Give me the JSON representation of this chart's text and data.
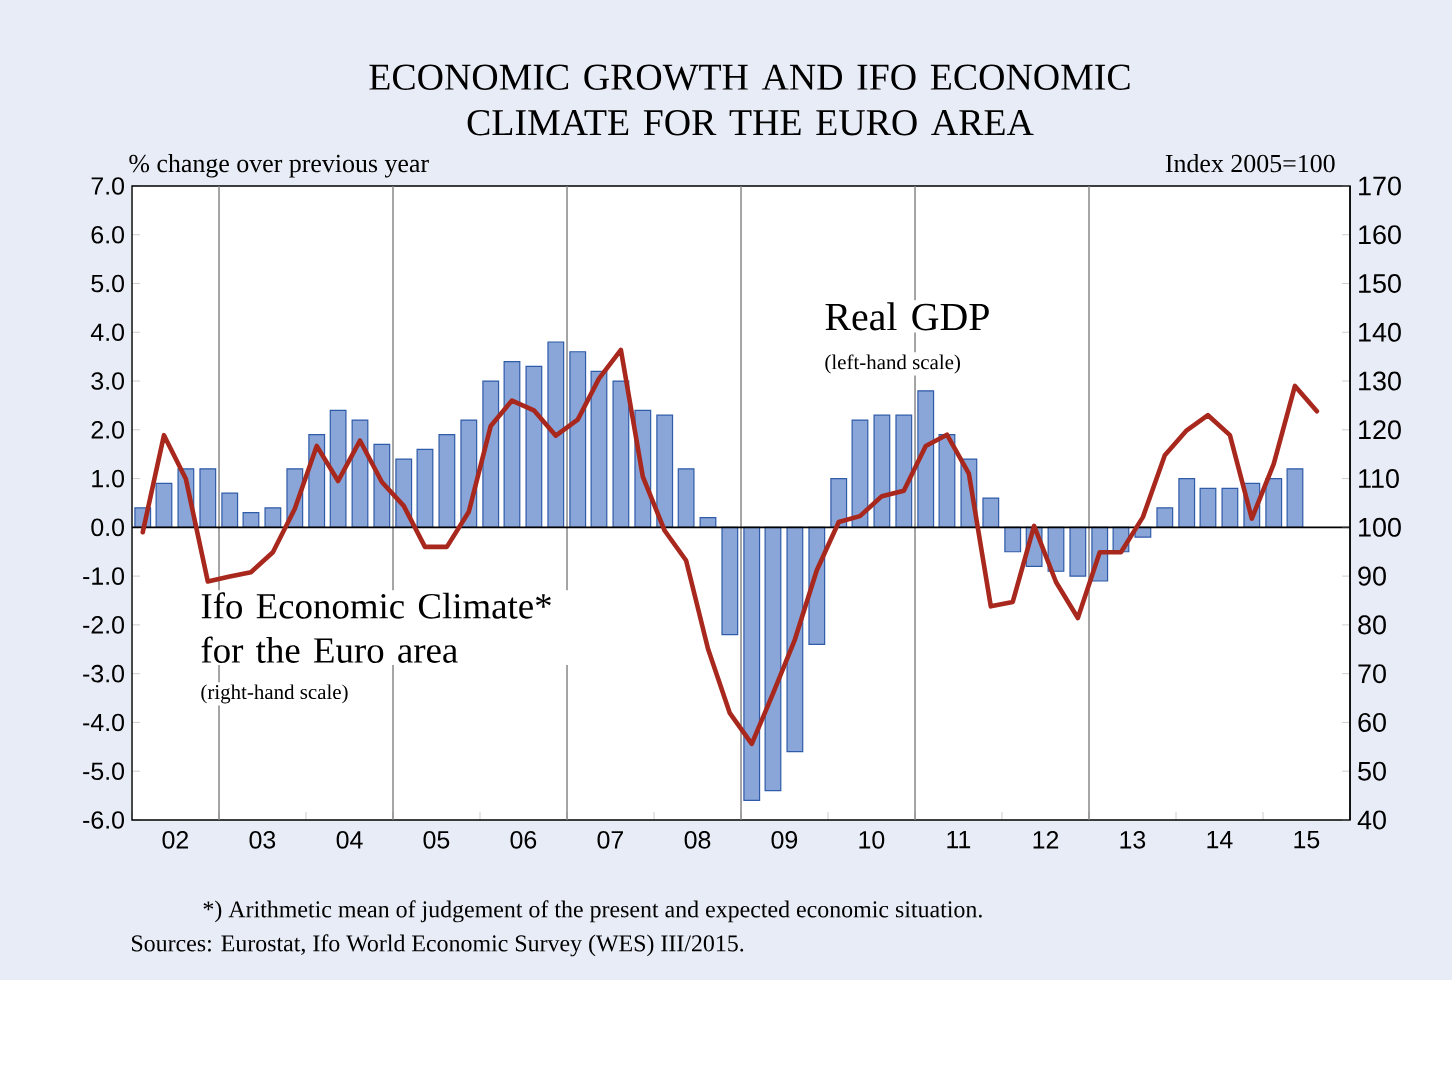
{
  "chart_data": {
    "type": "bar",
    "title": "ECONOMIC GROWTH AND IFO ECONOMIC CLIMATE FOR THE EURO AREA",
    "ylabel": "% change over previous year",
    "y2label": "Index 2005=100",
    "xlim": [
      "2002-01-01",
      "2016-01-01"
    ],
    "xticks": [
      {
        "value": "2002-01-01",
        "label": null
      },
      {
        "value": "2003-01-01",
        "label": null
      },
      {
        "value": "2004-01-01",
        "label": null
      },
      {
        "value": "2005-01-01",
        "label": null
      },
      {
        "value": "2006-01-01",
        "label": null
      },
      {
        "value": "2007-01-01",
        "label": null
      },
      {
        "value": "2008-01-01",
        "label": null
      },
      {
        "value": "2009-01-01",
        "label": null
      },
      {
        "value": "2010-01-01",
        "label": null
      },
      {
        "value": "2011-01-01",
        "label": null
      },
      {
        "value": "2012-01-01",
        "label": null
      },
      {
        "value": "2013-01-01",
        "label": null
      },
      {
        "value": "2014-01-01",
        "label": null
      },
      {
        "value": "2015-01-01",
        "label": null
      },
      {
        "value": "2016-01-01",
        "label": null
      },
      {
        "value": "2002-07-02",
        "label": "02"
      },
      {
        "value": "2003-07-02",
        "label": "03"
      },
      {
        "value": "2004-07-02",
        "label": "04"
      },
      {
        "value": "2005-07-02",
        "label": "05"
      },
      {
        "value": "2006-07-02",
        "label": "06"
      },
      {
        "value": "2007-07-02",
        "label": "07"
      },
      {
        "value": "2008-07-02",
        "label": "08"
      },
      {
        "value": "2009-07-02",
        "label": "09"
      },
      {
        "value": "2010-07-02",
        "label": "10"
      },
      {
        "value": "2011-07-02",
        "label": "11"
      },
      {
        "value": "2012-07-02",
        "label": "12"
      },
      {
        "value": "2013-07-02",
        "label": "13"
      },
      {
        "value": "2014-07-02",
        "label": "14"
      },
      {
        "value": "2015-07-02",
        "label": "15"
      }
    ],
    "ylim": [
      -6,
      7
    ],
    "yticks": [
      {
        "value": -6,
        "label": "-6.0"
      },
      {
        "value": -5,
        "label": "-5.0"
      },
      {
        "value": -4,
        "label": "-4.0"
      },
      {
        "value": -3,
        "label": "-3.0"
      },
      {
        "value": -2,
        "label": "-2.0"
      },
      {
        "value": -1,
        "label": "-1.0"
      },
      {
        "value": 0,
        "label": "0.0"
      },
      {
        "value": 1,
        "label": "1.0"
      },
      {
        "value": 2,
        "label": "2.0"
      },
      {
        "value": 3,
        "label": "3.0"
      },
      {
        "value": 4,
        "label": "4.0"
      },
      {
        "value": 5,
        "label": "5.0"
      },
      {
        "value": 6,
        "label": "6.0"
      },
      {
        "value": 7,
        "label": "7.0"
      }
    ],
    "y2lim": [
      40,
      170
    ],
    "y2ticks": [
      40,
      50,
      60,
      70,
      80,
      90,
      100,
      110,
      120,
      130,
      140,
      150,
      160,
      170
    ],
    "series": [
      {
        "name": "Real GDP",
        "color": "#8aa5d8",
        "x": [
          "2002-02-15",
          "2002-05-15",
          "2002-08-15",
          "2002-11-15",
          "2003-02-15",
          "2003-05-15",
          "2003-08-15",
          "2003-11-15",
          "2004-02-15",
          "2004-05-15",
          "2004-08-15",
          "2004-11-15",
          "2005-02-15",
          "2005-05-15",
          "2005-08-15",
          "2005-11-15",
          "2006-02-15",
          "2006-05-15",
          "2006-08-15",
          "2006-11-15",
          "2007-02-15",
          "2007-05-15",
          "2007-08-15",
          "2007-11-15",
          "2008-02-15",
          "2008-05-15",
          "2008-08-15",
          "2008-11-15",
          "2009-02-15",
          "2009-05-15",
          "2009-08-15",
          "2009-11-15",
          "2010-02-15",
          "2010-05-15",
          "2010-08-15",
          "2010-11-15",
          "2011-02-15",
          "2011-05-15",
          "2011-08-15",
          "2011-11-15",
          "2012-02-15",
          "2012-05-15",
          "2012-08-15",
          "2012-11-15",
          "2013-02-15",
          "2013-05-15",
          "2013-08-15",
          "2013-11-15",
          "2014-02-15",
          "2014-05-15",
          "2014-08-15",
          "2014-11-15",
          "2015-02-15",
          "2015-05-15"
        ],
        "values": [
          0.4,
          0.9,
          1.2,
          1.2,
          0.7,
          0.3,
          0.4,
          1.2,
          1.9,
          2.4,
          2.2,
          1.7,
          1.4,
          1.6,
          1.9,
          2.2,
          3.0,
          3.4,
          3.3,
          3.8,
          3.6,
          3.2,
          3.0,
          2.4,
          2.3,
          1.2,
          0.2,
          -2.2,
          -5.6,
          -5.4,
          -4.6,
          -2.4,
          1.0,
          2.2,
          2.3,
          2.3,
          2.8,
          1.9,
          1.4,
          0.6,
          -0.5,
          -0.8,
          -0.9,
          -1.0,
          -1.1,
          -0.5,
          -0.2,
          0.4,
          1.0,
          0.8,
          0.8,
          0.9,
          1.0,
          1.2
        ]
      },
      {
        "name": "Ifo Economic Climate* for the Euro area",
        "type": "line",
        "axis": "y2",
        "color": "#a8281e",
        "x": [
          "2002-02-15",
          "2002-05-15",
          "2002-08-15",
          "2002-11-15",
          "2003-02-15",
          "2003-05-15",
          "2003-08-15",
          "2003-11-15",
          "2004-02-15",
          "2004-05-15",
          "2004-08-15",
          "2004-11-15",
          "2005-02-15",
          "2005-05-15",
          "2005-08-15",
          "2005-11-15",
          "2006-02-15",
          "2006-05-15",
          "2006-08-15",
          "2006-11-15",
          "2007-02-15",
          "2007-05-15",
          "2007-08-15",
          "2007-11-15",
          "2008-02-15",
          "2008-05-15",
          "2008-08-15",
          "2008-11-15",
          "2009-02-15",
          "2009-05-15",
          "2009-08-15",
          "2009-11-15",
          "2010-02-15",
          "2010-05-15",
          "2010-08-15",
          "2010-11-15",
          "2011-02-15",
          "2011-05-15",
          "2011-08-15",
          "2011-11-15",
          "2012-02-15",
          "2012-05-15",
          "2012-08-15",
          "2012-11-15",
          "2013-02-15",
          "2013-05-15",
          "2013-08-15",
          "2013-11-15",
          "2014-02-15",
          "2014-05-15",
          "2014-08-15",
          "2014-11-15",
          "2015-02-15",
          "2015-05-15",
          "2015-08-15"
        ],
        "values": [
          99.0,
          118.9,
          109.9,
          88.9,
          89.9,
          90.8,
          94.9,
          103.8,
          116.7,
          109.5,
          117.8,
          109.3,
          104.4,
          96.0,
          96.0,
          103.2,
          120.8,
          126.0,
          124.0,
          118.8,
          122.1,
          130.5,
          136.4,
          110.4,
          99.3,
          93.2,
          75.1,
          61.9,
          55.6,
          65.9,
          77.0,
          91.2,
          101.1,
          102.3,
          106.4,
          107.5,
          116.7,
          119.0,
          111.0,
          83.8,
          84.7,
          100.3,
          88.8,
          81.4,
          94.9,
          94.9,
          102.1,
          114.8,
          119.9,
          123.0,
          118.9,
          101.8,
          113.0,
          129.0,
          123.8
        ]
      }
    ],
    "ref_lines": [
      {
        "axis": "x",
        "value": "2003-01-01",
        "color": "#7f7f7f"
      },
      {
        "axis": "x",
        "value": "2005-01-01",
        "color": "#7f7f7f"
      },
      {
        "axis": "x",
        "value": "2007-01-01",
        "color": "#7f7f7f"
      },
      {
        "axis": "x",
        "value": "2009-01-01",
        "color": "#7f7f7f"
      },
      {
        "axis": "x",
        "value": "2011-01-01",
        "color": "#7f7f7f"
      },
      {
        "axis": "x",
        "value": "2013-01-01",
        "color": "#7f7f7f"
      },
      {
        "axis": "y",
        "value": 0,
        "color": "#000000"
      }
    ],
    "annotations": [
      "(left-hand scale)",
      "(right-hand scale)",
      "*) Arithmetic mean of judgement of the present and expected economic situation.",
      "Sources: Eurostat, Ifo World Economic Survey (WES) III/2015."
    ]
  }
}
